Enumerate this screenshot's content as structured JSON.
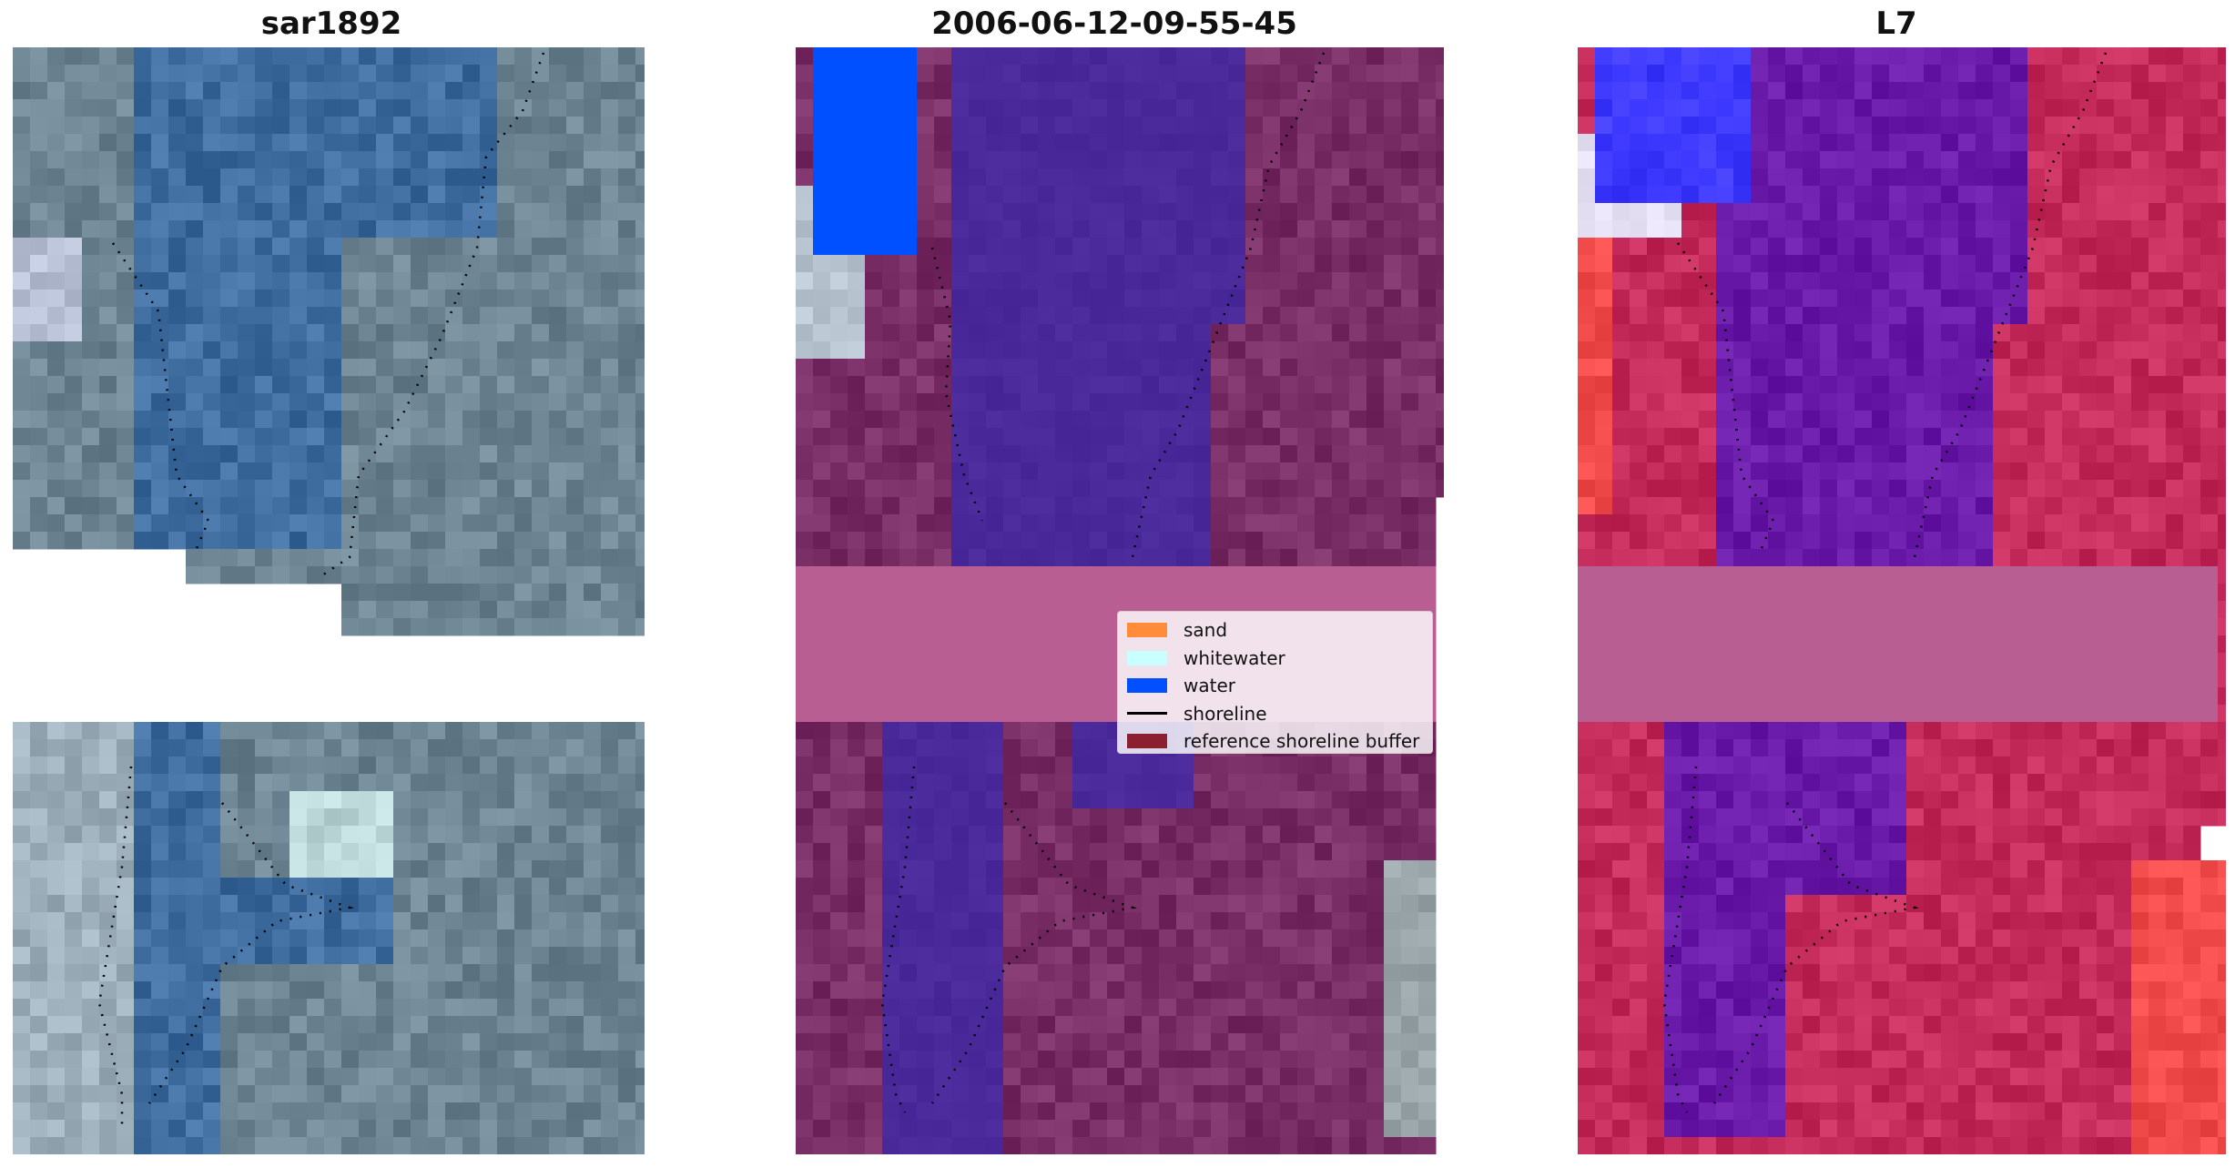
{
  "panels": [
    {
      "title": "sar1892",
      "style": "rgb"
    },
    {
      "title": "2006-06-12-09-55-45",
      "style": "classified"
    },
    {
      "title": "L7",
      "style": "false-color"
    }
  ],
  "legend": {
    "items": [
      {
        "label": "sand",
        "color": "#ff8c3a",
        "kind": "patch"
      },
      {
        "label": "whitewater",
        "color": "#c8ffff",
        "kind": "patch"
      },
      {
        "label": "water",
        "color": "#0050ff",
        "kind": "patch"
      },
      {
        "label": "shoreline",
        "color": "#000000",
        "kind": "line"
      },
      {
        "label": "reference shoreline buffer",
        "color": "#8b2030",
        "kind": "patch"
      }
    ]
  },
  "colors": {
    "rgb_water": "#3f6d9f",
    "rgb_land": "#6d8592",
    "classified_water": "#4a2a9a",
    "classified_land": "#7a2e66",
    "classified_buffer": "#b95e93",
    "classified_water_blue": "#0050ff",
    "l7_water": "#6a1aa8",
    "l7_land": "#c42a5a",
    "l7_buffer": "#b95e93"
  }
}
